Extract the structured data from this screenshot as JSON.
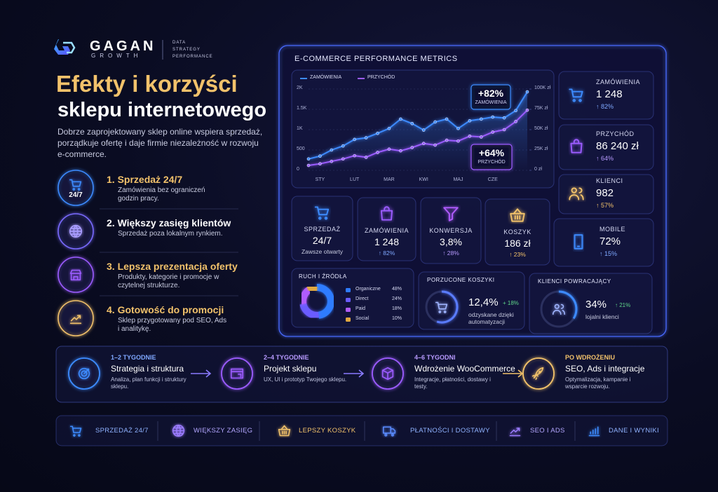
{
  "brand": {
    "name": "GAGAN",
    "sub": "GROWTH",
    "tagline": [
      "DATA",
      "STRATEGY",
      "PERFORMANCE"
    ]
  },
  "header": {
    "title": "Efekty i korzyści",
    "subtitle": "sklepu internetowego",
    "intro": "Dobrze zaprojektowany sklep online wspiera sprzedaż, porządkuje ofertę i daje firmie niezależność w rozwoju e-commerce."
  },
  "benefits": [
    {
      "badge": "24/7",
      "title": "1. Sprzedaż 24/7",
      "text": "Zamówienia bez ograniczeń godzin pracy."
    },
    {
      "title": "2. Większy zasięg klientów",
      "text": "Sprzedaż poza lokalnym rynkiem."
    },
    {
      "title": "3. Lepsza prezentacja oferty",
      "text": "Produkty, kategorie i promocje w czytelnej strukturze."
    },
    {
      "title": "4. Gotowość do promocji",
      "text": "Sklep przygotowany pod SEO, Ads i analitykę."
    }
  ],
  "dashboard": {
    "title": "E-COMMERCE PERFORMANCE METRICS"
  },
  "chart_data": [
    {
      "type": "line",
      "categories": [
        null,
        "STY",
        null,
        null,
        "LUT",
        null,
        null,
        "MAR",
        null,
        null,
        "KWI",
        null,
        null,
        "MAJ",
        null,
        null,
        "CZE",
        null,
        null,
        null
      ],
      "series": [
        {
          "name": "ZAMÓWIENIA",
          "color": "#3d8bff",
          "values": [
            280,
            350,
            500,
            600,
            760,
            800,
            910,
            1030,
            1260,
            1150,
            990,
            1190,
            1260,
            1030,
            1220,
            1260,
            1310,
            1290,
            1470,
            1930
          ]
        },
        {
          "name": "PRZYCHÓD",
          "color": "#9b5cff",
          "axis": "y2",
          "values": [
            6000,
            8000,
            11000,
            14000,
            18000,
            16000,
            22000,
            26000,
            24000,
            28000,
            33000,
            31000,
            37000,
            36000,
            42000,
            41000,
            47000,
            50000,
            60000,
            74000
          ]
        }
      ],
      "ylim": [
        0,
        2000
      ],
      "yticks": [
        0,
        500,
        {
          "value": 1000,
          "label": "1K"
        },
        {
          "value": 1500,
          "label": "1.5K"
        },
        {
          "value": 2000,
          "label": "2K"
        }
      ],
      "y2lim": [
        0,
        100000
      ],
      "y2ticks": [
        {
          "value": 0,
          "label": "0 zł"
        },
        {
          "value": 25000,
          "label": "25K zł"
        },
        {
          "value": 50000,
          "label": "50K zł"
        },
        {
          "value": 75000,
          "label": "75K zł"
        },
        {
          "value": 100000,
          "label": "100K zł"
        }
      ],
      "annotations": [
        {
          "value": "+82%",
          "label": "ZAMÓWIENIA"
        },
        {
          "value": "+64%",
          "label": "PRZYCHÓD"
        }
      ],
      "grid": true,
      "legend": "top-left"
    },
    {
      "type": "pie",
      "title": "RUCH I ŹRÓDŁA",
      "donut": true,
      "categories": [
        "Organiczne",
        "Direct",
        "Paid",
        "Social"
      ],
      "values": [
        48,
        24,
        18,
        10
      ],
      "value_labels": [
        "48%",
        "24%",
        "18%",
        "10%"
      ],
      "colors": [
        "#2f7bff",
        "#6a5cff",
        "#b05cff",
        "#e0a840"
      ]
    }
  ],
  "kpis": [
    {
      "label": "ZAMÓWIENIA",
      "value": "1 248",
      "change": "↑ 82%"
    },
    {
      "label": "PRZYCHÓD",
      "value": "86 240 zł",
      "change": "↑ 64%"
    },
    {
      "label": "KLIENCI",
      "value": "982",
      "change": "↑ 57%"
    },
    {
      "label": "MOBILE",
      "value": "72%",
      "change": "↑ 15%"
    }
  ],
  "tiles": [
    {
      "label": "SPRZEDAŻ",
      "value": "24/7",
      "change": "Zawsze otwarty"
    },
    {
      "label": "ZAMÓWIENIA",
      "value": "1 248",
      "change": "↑ 82%"
    },
    {
      "label": "KONWERSJA",
      "value": "3,8%",
      "change": "↑ 28%"
    },
    {
      "label": "KOSZYK",
      "value": "186 zł",
      "change": "↑ 23%"
    }
  ],
  "gauges": [
    {
      "title": "PORZUCONE KOSZYKI",
      "value": "12,4%",
      "change": "+ 18%",
      "text": "odzyskane dzięki automatyzacji"
    },
    {
      "title": "KLIENCI POWRACAJĄCY",
      "value": "34%",
      "change": "↑ 21%",
      "text": "lojalni klienci"
    }
  ],
  "timeline": [
    {
      "period": "1–2 TYGODNIE",
      "title": "Strategia i struktura",
      "text": "Analiza, plan funkcji i struktury sklepu."
    },
    {
      "period": "2–4 TYGODNIE",
      "title": "Projekt sklepu",
      "text": "UX, UI i prototyp Twojego sklepu."
    },
    {
      "period": "4–6 TYGODNI",
      "title": "Wdrożenie WooCommerce",
      "text": "Integracje, płatności, dostawy i testy."
    },
    {
      "period": "PO WDROŻENIU",
      "title": "SEO, Ads i integracje",
      "text": "Optymalizacja, kampanie i wsparcie rozwoju."
    }
  ],
  "footer": [
    "SPRZEDAŻ 24/7",
    "WIĘKSZY ZASIĘG",
    "LEPSZY KOSZYK",
    "PŁATNOŚCI I DOSTAWY",
    "SEO I ADS",
    "DANE I WYNIKI"
  ]
}
